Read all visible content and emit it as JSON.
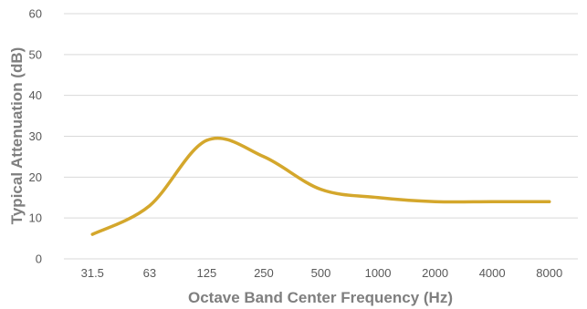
{
  "chart_data": {
    "type": "line",
    "title": "",
    "xlabel": "Octave Band Center Frequency (Hz)",
    "ylabel": "Typical Attenuation (dB)",
    "categories": [
      "31.5",
      "63",
      "125",
      "250",
      "500",
      "1000",
      "2000",
      "4000",
      "8000"
    ],
    "series": [
      {
        "values": [
          6,
          13,
          29,
          25,
          17,
          15,
          14,
          14,
          14
        ],
        "color": "#d4a72c"
      }
    ],
    "ylim": [
      0,
      60
    ],
    "yticks": [
      0,
      10,
      20,
      30,
      40,
      50,
      60
    ],
    "grid": true,
    "legend": "none",
    "smooth": true
  }
}
